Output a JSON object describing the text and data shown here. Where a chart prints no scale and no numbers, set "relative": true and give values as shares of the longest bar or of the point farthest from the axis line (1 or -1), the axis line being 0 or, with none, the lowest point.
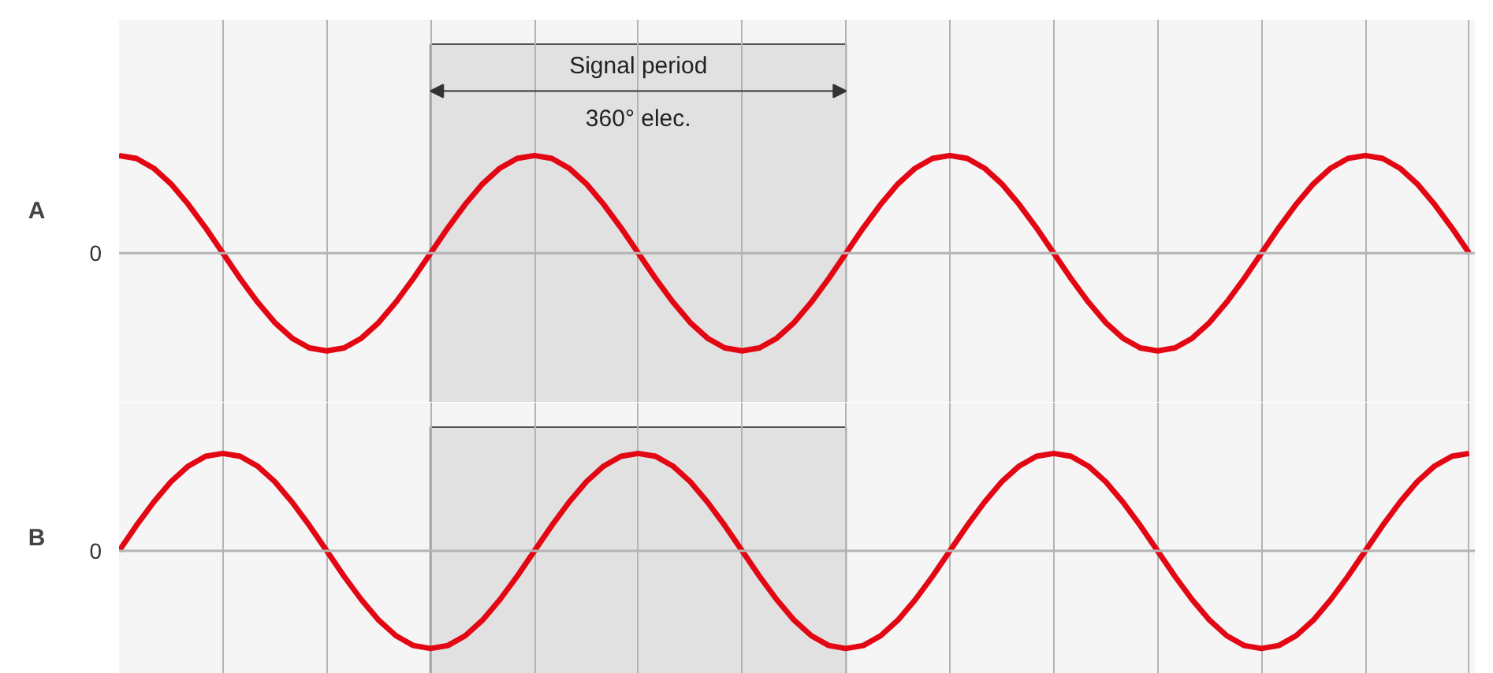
{
  "chart_data": [
    {
      "type": "line",
      "ylabel": "A",
      "relative": true,
      "grid": "x",
      "line_style": "solid",
      "categories": [
        null,
        null,
        null,
        null,
        null,
        null,
        null,
        null,
        null,
        null,
        null,
        null,
        null,
        null,
        null,
        null,
        null,
        null,
        null,
        null,
        null,
        null,
        null,
        null,
        null,
        null,
        null,
        null,
        null,
        null,
        null,
        null,
        null,
        null,
        null,
        null,
        null,
        null,
        null,
        null,
        null,
        null,
        null,
        null,
        null,
        null,
        null,
        null,
        null,
        null,
        null,
        null,
        null,
        null,
        null,
        null,
        null,
        null,
        null,
        null,
        null,
        null,
        null,
        null,
        null,
        null,
        null,
        null,
        null,
        null,
        null,
        null,
        null,
        null,
        null,
        null,
        null,
        null,
        null
      ],
      "series": [
        {
          "color": "#e30613",
          "values": [
            1,
            0.97,
            0.87,
            0.71,
            0.5,
            0.26,
            0,
            -0.26,
            -0.5,
            -0.71,
            -0.87,
            -0.97,
            -1,
            -0.97,
            -0.87,
            -0.71,
            -0.5,
            -0.26,
            0,
            0.26,
            0.5,
            0.71,
            0.87,
            0.97,
            1,
            0.97,
            0.87,
            0.71,
            0.5,
            0.26,
            0,
            -0.26,
            -0.5,
            -0.71,
            -0.87,
            -0.97,
            -1,
            -0.97,
            -0.87,
            -0.71,
            -0.5,
            -0.26,
            0,
            0.26,
            0.5,
            0.71,
            0.87,
            0.97,
            1,
            0.97,
            0.87,
            0.71,
            0.5,
            0.26,
            0,
            -0.26,
            -0.5,
            -0.71,
            -0.87,
            -0.97,
            -1,
            -0.97,
            -0.87,
            -0.71,
            -0.5,
            -0.26,
            0,
            0.26,
            0.5,
            0.71,
            0.87,
            0.97,
            1,
            0.97,
            0.87,
            0.71,
            0.5,
            0.26,
            0
          ]
        }
      ],
      "annotations": [
        "Signal period",
        "360° elec.",
        "0"
      ]
    },
    {
      "type": "line",
      "ylabel": "B",
      "relative": true,
      "grid": "x",
      "line_style": "solid",
      "categories": [
        null,
        null,
        null,
        null,
        null,
        null,
        null,
        null,
        null,
        null,
        null,
        null,
        null,
        null,
        null,
        null,
        null,
        null,
        null,
        null,
        null,
        null,
        null,
        null,
        null,
        null,
        null,
        null,
        null,
        null,
        null,
        null,
        null,
        null,
        null,
        null,
        null,
        null,
        null,
        null,
        null,
        null,
        null,
        null,
        null,
        null,
        null,
        null,
        null,
        null,
        null,
        null,
        null,
        null,
        null,
        null,
        null,
        null,
        null,
        null,
        null,
        null,
        null,
        null,
        null,
        null,
        null,
        null,
        null,
        null,
        null,
        null,
        null,
        null,
        null,
        null,
        null,
        null,
        null
      ],
      "series": [
        {
          "color": "#e30613",
          "values": [
            0,
            0.26,
            0.5,
            0.71,
            0.87,
            0.97,
            1,
            0.97,
            0.87,
            0.71,
            0.5,
            0.26,
            0,
            -0.26,
            -0.5,
            -0.71,
            -0.87,
            -0.97,
            -1,
            -0.97,
            -0.87,
            -0.71,
            -0.5,
            -0.26,
            0,
            0.26,
            0.5,
            0.71,
            0.87,
            0.97,
            1,
            0.97,
            0.87,
            0.71,
            0.5,
            0.26,
            0,
            -0.26,
            -0.5,
            -0.71,
            -0.87,
            -0.97,
            -1,
            -0.97,
            -0.87,
            -0.71,
            -0.5,
            -0.26,
            0,
            0.26,
            0.5,
            0.71,
            0.87,
            0.97,
            1,
            0.97,
            0.87,
            0.71,
            0.5,
            0.26,
            0,
            -0.26,
            -0.5,
            -0.71,
            -0.87,
            -0.97,
            -1,
            -0.97,
            -0.87,
            -0.71,
            -0.5,
            -0.26,
            0,
            0.26,
            0.5,
            0.71,
            0.87,
            0.97,
            1
          ]
        }
      ],
      "annotations": [
        "0"
      ]
    }
  ]
}
